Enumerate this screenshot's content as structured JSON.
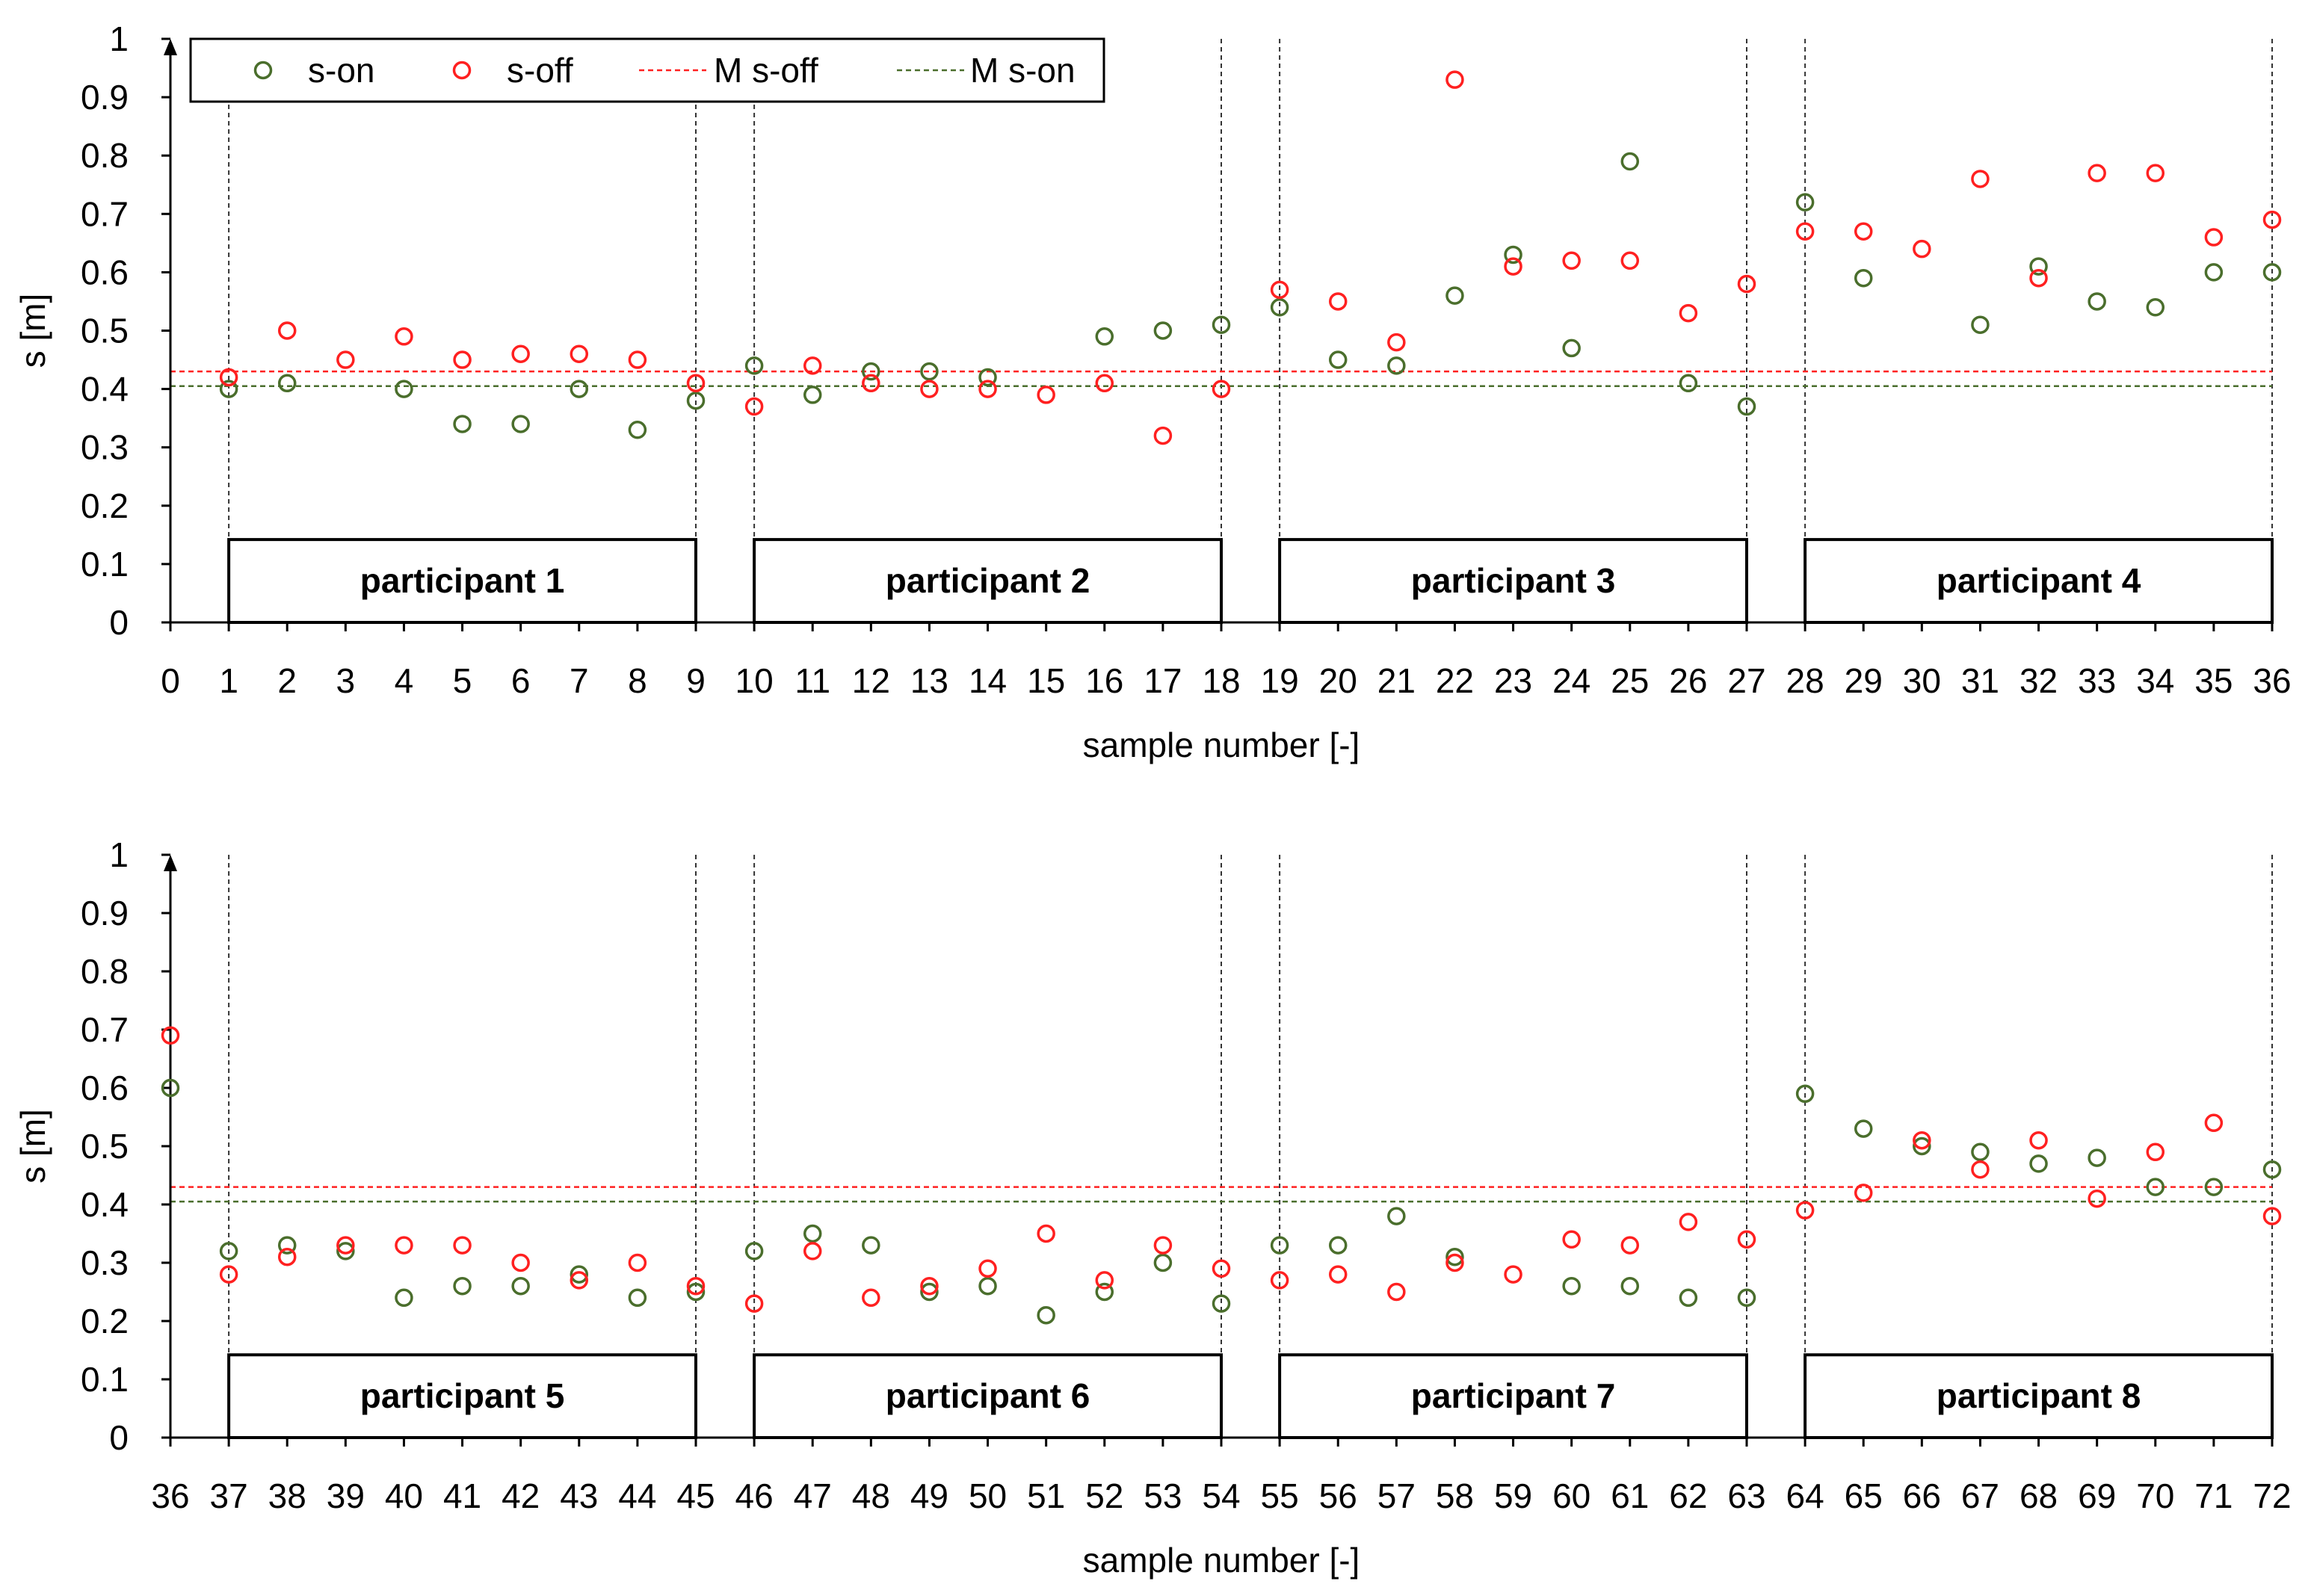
{
  "chart_data": [
    {
      "type": "scatter",
      "ylabel": "s [m]",
      "xlabel": "sample number [-]",
      "xlim": [
        0,
        36
      ],
      "ylim": [
        0,
        1
      ],
      "yticks": [
        "0",
        "0.1",
        "0.2",
        "0.3",
        "0.4",
        "0.5",
        "0.6",
        "0.7",
        "0.8",
        "0.9",
        "1"
      ],
      "xticks": [
        "0",
        "1",
        "2",
        "3",
        "4",
        "5",
        "6",
        "7",
        "8",
        "9",
        "10",
        "11",
        "12",
        "13",
        "14",
        "15",
        "16",
        "17",
        "18",
        "19",
        "20",
        "21",
        "22",
        "23",
        "24",
        "25",
        "26",
        "27",
        "28",
        "29",
        "30",
        "31",
        "32",
        "33",
        "34",
        "35",
        "36"
      ],
      "legend": [
        "s-on",
        "s-off",
        "M s-off",
        "M s-on"
      ],
      "mean_s_off": 0.43,
      "mean_s_on": 0.405,
      "participants": [
        {
          "label": "participant 1",
          "from": 1,
          "to": 9
        },
        {
          "label": "participant 2",
          "from": 10,
          "to": 18
        },
        {
          "label": "participant 3",
          "from": 19,
          "to": 27
        },
        {
          "label": "participant 4",
          "from": 28,
          "to": 36
        }
      ],
      "series": [
        {
          "name": "s-on",
          "x": [
            1,
            2,
            4,
            5,
            6,
            7,
            8,
            9,
            10,
            11,
            12,
            13,
            14,
            16,
            17,
            18,
            19,
            20,
            21,
            22,
            23,
            24,
            25,
            26,
            27,
            28,
            29,
            31,
            32,
            33,
            34,
            35,
            36
          ],
          "values": [
            0.4,
            0.41,
            0.4,
            0.34,
            0.34,
            0.4,
            0.33,
            0.38,
            0.44,
            0.39,
            0.43,
            0.43,
            0.42,
            0.49,
            0.5,
            0.51,
            0.54,
            0.45,
            0.44,
            0.56,
            0.63,
            0.47,
            0.79,
            0.41,
            0.37,
            0.72,
            0.59,
            0.51,
            0.61,
            0.55,
            0.54,
            0.6,
            0.6
          ]
        },
        {
          "name": "s-off",
          "x": [
            1,
            2,
            3,
            4,
            5,
            6,
            7,
            8,
            9,
            10,
            11,
            12,
            13,
            14,
            15,
            16,
            17,
            18,
            19,
            20,
            21,
            22,
            23,
            24,
            25,
            26,
            27,
            28,
            29,
            30,
            31,
            32,
            33,
            34,
            35,
            36
          ],
          "values": [
            0.42,
            0.5,
            0.45,
            0.49,
            0.45,
            0.46,
            0.46,
            0.45,
            0.41,
            0.37,
            0.44,
            0.41,
            0.4,
            0.4,
            0.39,
            0.41,
            0.32,
            0.4,
            0.57,
            0.55,
            0.48,
            0.93,
            0.61,
            0.62,
            0.62,
            0.53,
            0.58,
            0.67,
            0.67,
            0.64,
            0.76,
            0.59,
            0.77,
            0.77,
            0.66,
            0.69
          ]
        }
      ]
    },
    {
      "type": "scatter",
      "ylabel": "s [m]",
      "xlabel": "sample number [-]",
      "xlim": [
        36,
        72
      ],
      "ylim": [
        0,
        1
      ],
      "yticks": [
        "0",
        "0.1",
        "0.2",
        "0.3",
        "0.4",
        "0.5",
        "0.6",
        "0.7",
        "0.8",
        "0.9",
        "1"
      ],
      "xticks": [
        "36",
        "37",
        "38",
        "39",
        "40",
        "41",
        "42",
        "43",
        "44",
        "45",
        "46",
        "47",
        "48",
        "49",
        "50",
        "51",
        "52",
        "53",
        "54",
        "55",
        "56",
        "57",
        "58",
        "59",
        "60",
        "61",
        "62",
        "63",
        "64",
        "65",
        "66",
        "67",
        "68",
        "69",
        "70",
        "71",
        "72"
      ],
      "mean_s_off": 0.43,
      "mean_s_on": 0.405,
      "participants": [
        {
          "label": "participant 5",
          "from": 37,
          "to": 45
        },
        {
          "label": "participant 6",
          "from": 46,
          "to": 54
        },
        {
          "label": "participant 7",
          "from": 55,
          "to": 63
        },
        {
          "label": "participant 8",
          "from": 64,
          "to": 72
        }
      ],
      "series": [
        {
          "name": "s-on",
          "x": [
            36,
            37,
            38,
            39,
            40,
            41,
            42,
            43,
            44,
            45,
            46,
            47,
            48,
            49,
            50,
            51,
            52,
            53,
            54,
            55,
            56,
            57,
            58,
            60,
            61,
            62,
            63,
            64,
            65,
            66,
            67,
            68,
            69,
            70,
            71,
            72
          ],
          "values": [
            0.6,
            0.32,
            0.33,
            0.32,
            0.24,
            0.26,
            0.26,
            0.28,
            0.24,
            0.25,
            0.32,
            0.35,
            0.33,
            0.25,
            0.26,
            0.21,
            0.25,
            0.3,
            0.23,
            0.33,
            0.33,
            0.38,
            0.31,
            0.26,
            0.26,
            0.24,
            0.24,
            0.59,
            0.53,
            0.5,
            0.49,
            0.47,
            0.48,
            0.43,
            0.43,
            0.46
          ]
        },
        {
          "name": "s-off",
          "x": [
            36,
            37,
            38,
            39,
            40,
            41,
            42,
            43,
            44,
            45,
            46,
            47,
            48,
            49,
            50,
            51,
            52,
            53,
            54,
            55,
            56,
            57,
            58,
            59,
            60,
            61,
            62,
            63,
            64,
            65,
            66,
            67,
            68,
            69,
            70,
            71,
            72
          ],
          "values": [
            0.69,
            0.28,
            0.31,
            0.33,
            0.33,
            0.33,
            0.3,
            0.27,
            0.3,
            0.26,
            0.23,
            0.32,
            0.24,
            0.26,
            0.29,
            0.35,
            0.27,
            0.33,
            0.29,
            0.27,
            0.28,
            0.25,
            0.3,
            0.28,
            0.34,
            0.33,
            0.37,
            0.34,
            0.39,
            0.42,
            0.51,
            0.46,
            0.51,
            0.41,
            0.49,
            0.54,
            0.38
          ]
        }
      ]
    }
  ],
  "colors": {
    "s_on": "#4a6e2c",
    "s_off": "#ff2020",
    "mean_off": "#ff2020",
    "mean_on": "#4a6e2c",
    "axis": "#000000",
    "divider": "#333333"
  }
}
